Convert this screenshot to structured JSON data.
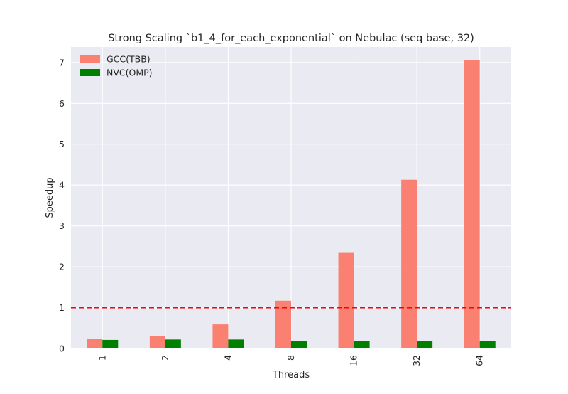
{
  "chart_data": {
    "type": "bar",
    "title": "Strong Scaling `b1_4_for_each_exponential` on Nebulac (seq base, 32)",
    "xlabel": "Threads",
    "ylabel": "Speedup",
    "categories": [
      "1",
      "2",
      "4",
      "8",
      "16",
      "32",
      "64"
    ],
    "series": [
      {
        "name": "GCC(TBB)",
        "color": "#fa8072",
        "values": [
          0.24,
          0.3,
          0.59,
          1.17,
          2.34,
          4.13,
          7.05
        ]
      },
      {
        "name": "NVC(OMP)",
        "color": "#008000",
        "values": [
          0.21,
          0.22,
          0.22,
          0.19,
          0.18,
          0.18,
          0.18
        ]
      }
    ],
    "ylim": [
      0,
      7.38
    ],
    "yticks": [
      0,
      1,
      2,
      3,
      4,
      5,
      6,
      7
    ],
    "reference_line": {
      "y": 1,
      "style": "dashed",
      "color": "#ff0000"
    },
    "grid": true,
    "legend_position": "top-left",
    "background": "#eaeaf2"
  }
}
